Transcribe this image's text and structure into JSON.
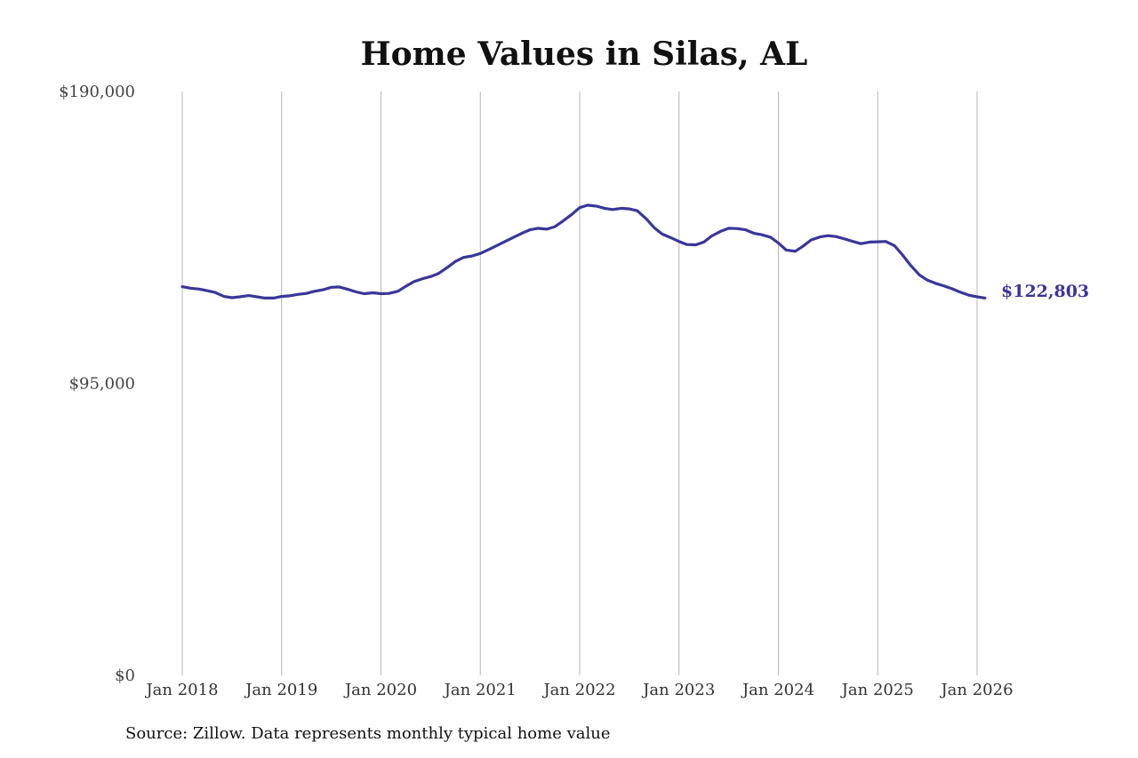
{
  "chart_data": {
    "type": "line",
    "title": "Home Values in Silas, AL",
    "xlabel": "",
    "ylabel": "",
    "ylim": [
      0,
      190000
    ],
    "y_ticks": [
      {
        "value": 0,
        "label": "$0"
      },
      {
        "value": 95000,
        "label": "$95,000"
      },
      {
        "value": 190000,
        "label": "$190,000"
      }
    ],
    "x_ticks": [
      {
        "value": 2018,
        "label": "Jan 2018"
      },
      {
        "value": 2019,
        "label": "Jan 2019"
      },
      {
        "value": 2020,
        "label": "Jan 2020"
      },
      {
        "value": 2021,
        "label": "Jan 2021"
      },
      {
        "value": 2022,
        "label": "Jan 2022"
      },
      {
        "value": 2023,
        "label": "Jan 2023"
      },
      {
        "value": 2024,
        "label": "Jan 2024"
      },
      {
        "value": 2025,
        "label": "Jan 2025"
      },
      {
        "value": 2026,
        "label": "Jan 2026"
      }
    ],
    "xlim": [
      2018,
      2026
    ],
    "grid": {
      "vertical": true,
      "horizontal": false
    },
    "line_color": "#3a3699",
    "end_label": "$122,803",
    "series": [
      {
        "values": [
          [
            2018.0,
            126500
          ],
          [
            2018.08,
            126000
          ],
          [
            2018.17,
            125700
          ],
          [
            2018.25,
            125200
          ],
          [
            2018.33,
            124600
          ],
          [
            2018.42,
            123300
          ],
          [
            2018.5,
            122900
          ],
          [
            2018.58,
            123200
          ],
          [
            2018.67,
            123600
          ],
          [
            2018.75,
            123200
          ],
          [
            2018.83,
            122800
          ],
          [
            2018.92,
            122800
          ],
          [
            2019.0,
            123300
          ],
          [
            2019.08,
            123500
          ],
          [
            2019.17,
            124000
          ],
          [
            2019.25,
            124300
          ],
          [
            2019.33,
            125000
          ],
          [
            2019.42,
            125500
          ],
          [
            2019.5,
            126300
          ],
          [
            2019.58,
            126400
          ],
          [
            2019.67,
            125600
          ],
          [
            2019.75,
            124800
          ],
          [
            2019.83,
            124200
          ],
          [
            2019.92,
            124500
          ],
          [
            2020.0,
            124200
          ],
          [
            2020.08,
            124300
          ],
          [
            2020.17,
            125000
          ],
          [
            2020.25,
            126600
          ],
          [
            2020.33,
            128100
          ],
          [
            2020.42,
            129100
          ],
          [
            2020.5,
            129800
          ],
          [
            2020.58,
            130800
          ],
          [
            2020.67,
            132800
          ],
          [
            2020.75,
            134700
          ],
          [
            2020.83,
            136000
          ],
          [
            2020.92,
            136500
          ],
          [
            2021.0,
            137300
          ],
          [
            2021.08,
            138500
          ],
          [
            2021.17,
            139900
          ],
          [
            2021.25,
            141200
          ],
          [
            2021.33,
            142500
          ],
          [
            2021.42,
            143900
          ],
          [
            2021.5,
            145000
          ],
          [
            2021.58,
            145500
          ],
          [
            2021.67,
            145200
          ],
          [
            2021.75,
            146000
          ],
          [
            2021.83,
            147800
          ],
          [
            2021.92,
            150000
          ],
          [
            2022.0,
            152200
          ],
          [
            2022.08,
            153000
          ],
          [
            2022.17,
            152700
          ],
          [
            2022.25,
            152000
          ],
          [
            2022.33,
            151600
          ],
          [
            2022.42,
            152000
          ],
          [
            2022.5,
            151800
          ],
          [
            2022.58,
            151200
          ],
          [
            2022.67,
            148600
          ],
          [
            2022.75,
            145700
          ],
          [
            2022.83,
            143600
          ],
          [
            2022.92,
            142400
          ],
          [
            2023.0,
            141200
          ],
          [
            2023.08,
            140200
          ],
          [
            2023.17,
            140100
          ],
          [
            2023.25,
            141000
          ],
          [
            2023.33,
            143000
          ],
          [
            2023.42,
            144500
          ],
          [
            2023.5,
            145500
          ],
          [
            2023.58,
            145400
          ],
          [
            2023.67,
            145000
          ],
          [
            2023.75,
            143900
          ],
          [
            2023.83,
            143400
          ],
          [
            2023.92,
            142600
          ],
          [
            2024.0,
            140700
          ],
          [
            2024.08,
            138400
          ],
          [
            2024.17,
            138000
          ],
          [
            2024.25,
            139700
          ],
          [
            2024.33,
            141700
          ],
          [
            2024.42,
            142700
          ],
          [
            2024.5,
            143100
          ],
          [
            2024.58,
            142800
          ],
          [
            2024.67,
            142000
          ],
          [
            2024.75,
            141200
          ],
          [
            2024.83,
            140500
          ],
          [
            2024.92,
            141000
          ],
          [
            2025.0,
            141100
          ],
          [
            2025.08,
            141200
          ],
          [
            2025.17,
            139800
          ],
          [
            2025.25,
            136800
          ],
          [
            2025.33,
            133500
          ],
          [
            2025.42,
            130300
          ],
          [
            2025.5,
            128600
          ],
          [
            2025.58,
            127600
          ],
          [
            2025.67,
            126700
          ],
          [
            2025.75,
            125800
          ],
          [
            2025.83,
            124700
          ],
          [
            2025.92,
            123700
          ],
          [
            2026.0,
            123200
          ],
          [
            2026.08,
            122803
          ]
        ]
      }
    ]
  },
  "source_note": "Source: Zillow. Data represents monthly typical home value"
}
